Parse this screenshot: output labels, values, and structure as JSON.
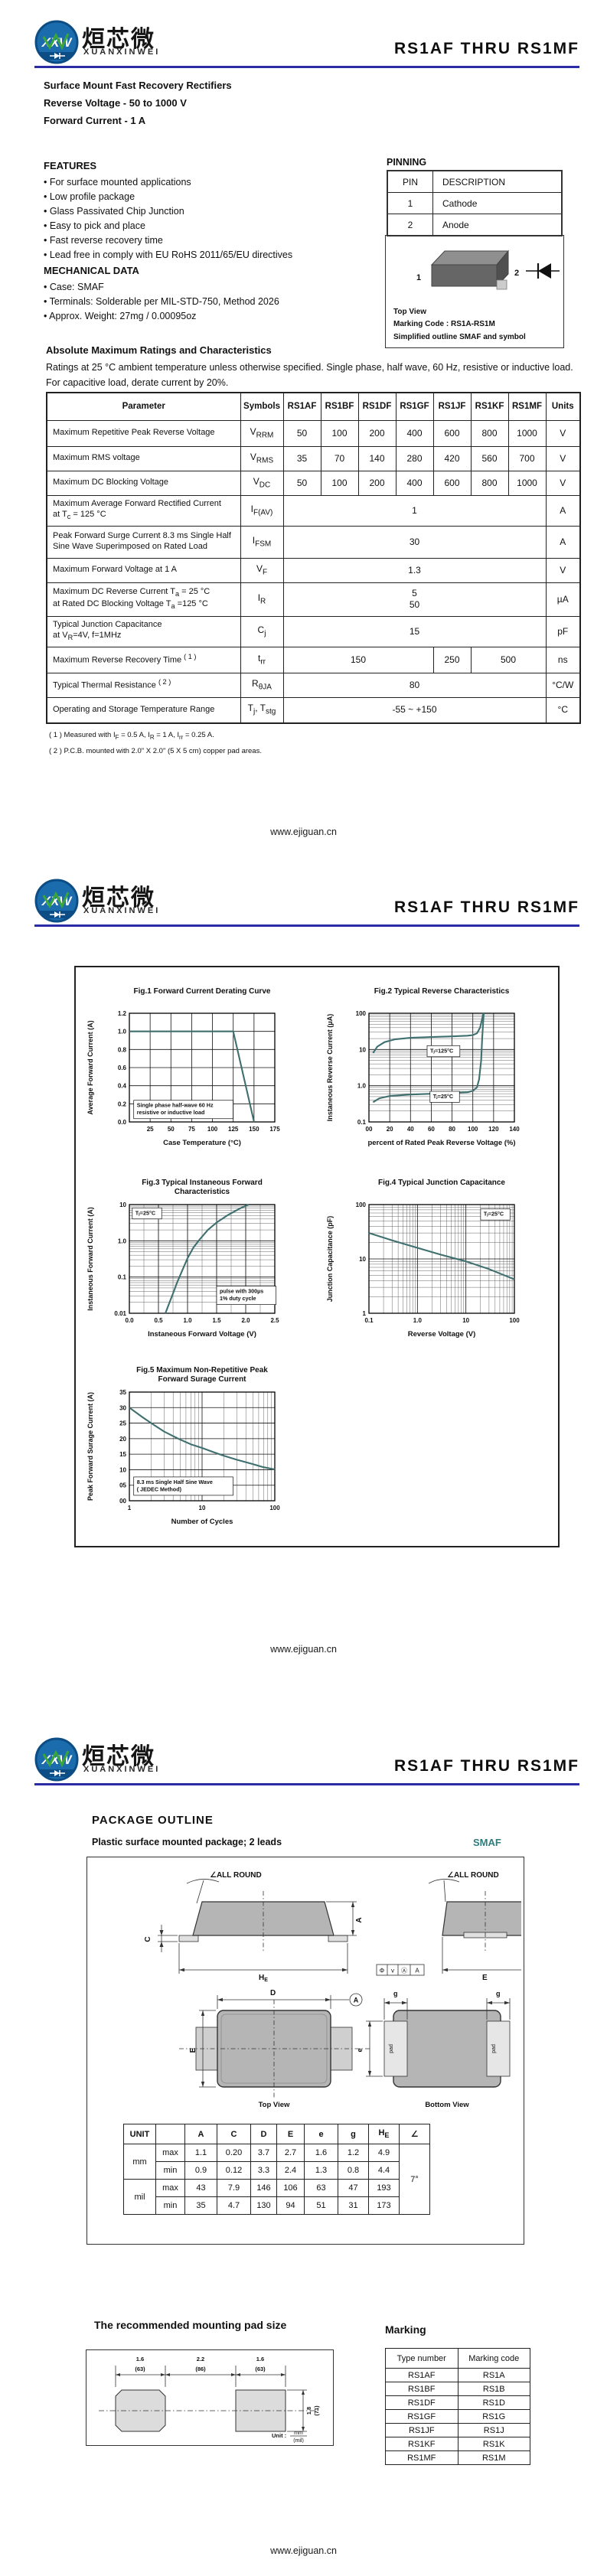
{
  "brand": {
    "title": "RS1AF  THRU  RS1MF",
    "logo_xxw": "XXW",
    "logo_cn": "烜芯微",
    "logo_en": "XUANXINWEI",
    "footer": "www.ejiguan.cn",
    "accent_color": "#2b2ba6",
    "teal_color": "#2e7d7d"
  },
  "page1": {
    "subtitle_lines": [
      "Surface Mount Fast Recovery Rectifiers",
      "Reverse Voltage - 50 to 1000 V",
      "Forward Current - 1 A"
    ],
    "features": {
      "heading": "FEATURES",
      "items": [
        "For surface mounted applications",
        "Low profile package",
        "Glass Passivated Chip Junction",
        "Easy to pick and place",
        "Fast reverse recovery time",
        "Lead free in comply with EU RoHS 2011/65/EU directives"
      ]
    },
    "mechanical": {
      "heading": "MECHANICAL DATA",
      "items": [
        "Case: SMAF",
        "Terminals: Solderable per MIL-STD-750, Method 2026",
        "Approx. Weight:  27mg / 0.00095oz"
      ]
    },
    "pinning": {
      "heading": "PINNING",
      "headers": [
        "PIN",
        "DESCRIPTION"
      ],
      "rows": [
        [
          "1",
          "Cathode"
        ],
        [
          "2",
          "Anode"
        ]
      ]
    },
    "outline_box": {
      "pin1": "1",
      "pin2": "2",
      "lines": [
        "Top View",
        "Marking Code :  RS1A-RS1M",
        "Simplified outline SMAF and symbol"
      ]
    },
    "ratings": {
      "heading": "Absolute Maximum Ratings and Characteristics",
      "note_lines": [
        "Ratings at 25 °C ambient temperature unless otherwise specified. Single phase, half wave, 60 Hz, resistive or inductive load.",
        "For capacitive load, derate current by 20%."
      ],
      "col_headers": [
        "Parameter",
        "Symbols",
        "RS1AF",
        "RS1BF",
        "RS1DF",
        "RS1GF",
        "RS1JF",
        "RS1KF",
        "RS1MF",
        "Units"
      ],
      "rows": [
        {
          "param": "Maximum Repetitive Peak Reverse Voltage",
          "sym": "V_{RRM}",
          "cells": [
            [
              "50",
              1
            ],
            [
              "100",
              1
            ],
            [
              "200",
              1
            ],
            [
              "400",
              1
            ],
            [
              "600",
              1
            ],
            [
              "800",
              1
            ],
            [
              "1000",
              1
            ]
          ],
          "unit": "V"
        },
        {
          "param": "Maximum RMS voltage",
          "sym": "V_{RMS}",
          "cells": [
            [
              "35",
              1
            ],
            [
              "70",
              1
            ],
            [
              "140",
              1
            ],
            [
              "280",
              1
            ],
            [
              "420",
              1
            ],
            [
              "560",
              1
            ],
            [
              "700",
              1
            ]
          ],
          "unit": "V"
        },
        {
          "param": "Maximum DC Blocking Voltage",
          "sym": "V_{DC}",
          "cells": [
            [
              "50",
              1
            ],
            [
              "100",
              1
            ],
            [
              "200",
              1
            ],
            [
              "400",
              1
            ],
            [
              "600",
              1
            ],
            [
              "800",
              1
            ],
            [
              "1000",
              1
            ]
          ],
          "unit": "V"
        },
        {
          "param": "Maximum Average Forward Rectified Current\nat T_{c} = 125 °C",
          "sym": "I_{F(AV)}",
          "cells": [
            [
              "1",
              7
            ]
          ],
          "unit": "A"
        },
        {
          "param": "Peak Forward Surge Current 8.3 ms Single Half\nSine Wave Superimposed on Rated Load",
          "sym": "I_{FSM}",
          "cells": [
            [
              "30",
              7
            ]
          ],
          "unit": "A"
        },
        {
          "param": "Maximum  Forward Voltage at 1 A",
          "sym": "V_{F}",
          "cells": [
            [
              "1.3",
              7
            ]
          ],
          "unit": "V"
        },
        {
          "param": "Maximum DC Reverse Current      T_{a} = 25 °C\nat Rated DC Blocking Voltage    T_{a} =125 °C",
          "sym": "I_{R}",
          "cells": [
            [
              "5\n50",
              7
            ]
          ],
          "unit": "µA"
        },
        {
          "param": "Typical Junction Capacitance\nat V_{R}=4V, f=1MHz",
          "sym": "C_{j}",
          "cells": [
            [
              "15",
              7
            ]
          ],
          "unit": "pF"
        },
        {
          "param": "Maximum Reverse Recovery Time ^{( 1 )}",
          "sym": "t_{rr}",
          "cells": [
            [
              "150",
              4
            ],
            [
              "250",
              1
            ],
            [
              "500",
              2
            ]
          ],
          "unit": "ns"
        },
        {
          "param": "Typical Thermal Resistance ^{( 2 )}",
          "sym": "R_{θJA}",
          "cells": [
            [
              "80",
              7
            ]
          ],
          "unit": "°C/W"
        },
        {
          "param": "Operating and Storage Temperature Range",
          "sym": "T_{j}, T_{stg}",
          "cells": [
            [
              "-55 ~ +150",
              7
            ]
          ],
          "unit": "°C"
        }
      ],
      "footnotes": [
        "( 1 ) Measured with I_{F} = 0.5 A, I_{R} = 1 A, I_{rr} = 0.25 A.",
        "( 2 ) P.C.B. mounted with 2.0\" X 2.0\" (5 X 5 cm) copper pad areas."
      ]
    }
  },
  "chart_data": [
    {
      "id": "fig1",
      "type": "line",
      "title": "Fig.1  Forward Current Derating Curve",
      "xlabel": "Case Temperature (°C)",
      "ylabel": "Average Forward Current  (A)",
      "x_scale": "linear",
      "y_scale": "linear",
      "xlim": [
        0,
        175
      ],
      "ylim": [
        0,
        1.2
      ],
      "x_ticks": [
        [
          25,
          "25"
        ],
        [
          50,
          "50"
        ],
        [
          75,
          "75"
        ],
        [
          100,
          "100"
        ],
        [
          125,
          "125"
        ],
        [
          150,
          "150"
        ],
        [
          175,
          "175"
        ]
      ],
      "y_ticks": [
        [
          0,
          "0.0"
        ],
        [
          0.2,
          "0.2"
        ],
        [
          0.4,
          "0.4"
        ],
        [
          0.6,
          "0.6"
        ],
        [
          0.8,
          "0.8"
        ],
        [
          1.0,
          "1.0"
        ],
        [
          1.2,
          "1.2"
        ]
      ],
      "series": [
        {
          "name": "derating",
          "points": [
            [
              0,
              1.0
            ],
            [
              125,
              1.0
            ],
            [
              150,
              0.0
            ]
          ]
        }
      ],
      "annotations": [
        {
          "text": "Single phase half-wave 60 Hz\nresistive or inductive load",
          "fx": 0.03,
          "fy": 0.97,
          "anchor": "bl",
          "boxed": true
        }
      ]
    },
    {
      "id": "fig2",
      "type": "line",
      "title": "Fig.2  Typical Reverse Characteristics",
      "xlabel": "percent of Rated  Peak Reverse Voltage (%)",
      "ylabel": "Instaneous Reverse Current  (μA)",
      "x_scale": "linear",
      "y_scale": "log",
      "xlim": [
        0,
        140
      ],
      "ylim": [
        0.1,
        100
      ],
      "x_ticks": [
        [
          0,
          "00"
        ],
        [
          20,
          "20"
        ],
        [
          40,
          "40"
        ],
        [
          60,
          "60"
        ],
        [
          80,
          "80"
        ],
        [
          100,
          "100"
        ],
        [
          120,
          "120"
        ],
        [
          140,
          "140"
        ]
      ],
      "y_ticks": [
        [
          0.1,
          "0.1"
        ],
        [
          1,
          "1.0"
        ],
        [
          10,
          "10"
        ],
        [
          100,
          "100"
        ]
      ],
      "series": [
        {
          "name": "Tj=125C",
          "points": [
            [
              4,
              8
            ],
            [
              8,
              12
            ],
            [
              15,
              16
            ],
            [
              25,
              19
            ],
            [
              40,
              21
            ],
            [
              60,
              22
            ],
            [
              80,
              23
            ],
            [
              95,
              24
            ],
            [
              100,
              25
            ],
            [
              104,
              28
            ],
            [
              107,
              40
            ],
            [
              109,
              70
            ],
            [
              110,
              100
            ]
          ]
        },
        {
          "name": "Tj=25C",
          "points": [
            [
              4,
              0.35
            ],
            [
              10,
              0.45
            ],
            [
              20,
              0.52
            ],
            [
              40,
              0.57
            ],
            [
              60,
              0.6
            ],
            [
              80,
              0.63
            ],
            [
              95,
              0.66
            ],
            [
              100,
              0.72
            ],
            [
              104,
              0.9
            ],
            [
              106,
              1.5
            ],
            [
              108,
              5
            ],
            [
              109,
              20
            ],
            [
              110,
              60
            ],
            [
              110.5,
              100
            ]
          ]
        }
      ],
      "annotations": [
        {
          "text": "Tⱼ=125°C",
          "fx": 0.4,
          "fy": 0.4,
          "anchor": "bl",
          "boxed": true
        },
        {
          "text": "Tⱼ=25°C",
          "fx": 0.42,
          "fy": 0.82,
          "anchor": "bl",
          "boxed": true
        }
      ]
    },
    {
      "id": "fig3",
      "type": "line",
      "title": "Fig.3  Typical Instaneous Forward\nCharacteristics",
      "xlabel": "Instaneous Forward Voltage (V)",
      "ylabel": "Instaneous Forward Current (A)",
      "x_scale": "linear",
      "y_scale": "log",
      "x_minor_step": 0.25,
      "xlim": [
        0,
        2.5
      ],
      "ylim": [
        0.01,
        10
      ],
      "x_ticks": [
        [
          0,
          "0.0"
        ],
        [
          0.5,
          "0.5"
        ],
        [
          1.0,
          "1.0"
        ],
        [
          1.5,
          "1.5"
        ],
        [
          2.0,
          "2.0"
        ],
        [
          2.5,
          "2.5"
        ]
      ],
      "y_ticks": [
        [
          0.01,
          "0.01"
        ],
        [
          0.1,
          "0.1"
        ],
        [
          1,
          "1.0"
        ],
        [
          10,
          "10"
        ]
      ],
      "series": [
        {
          "name": "vf",
          "points": [
            [
              0.62,
              0.01
            ],
            [
              0.68,
              0.018
            ],
            [
              0.75,
              0.035
            ],
            [
              0.82,
              0.07
            ],
            [
              0.9,
              0.14
            ],
            [
              1.0,
              0.33
            ],
            [
              1.1,
              0.65
            ],
            [
              1.2,
              1.05
            ],
            [
              1.35,
              2.0
            ],
            [
              1.5,
              3.2
            ],
            [
              1.7,
              5.2
            ],
            [
              1.9,
              7.8
            ],
            [
              2.05,
              10
            ]
          ]
        }
      ],
      "annotations": [
        {
          "text": "Tⱼ=25°C",
          "fx": 0.02,
          "fy": 0.03,
          "anchor": "tl",
          "boxed": true
        },
        {
          "text": "pulse with 300µs\n1% duty cycle",
          "fx": 0.6,
          "fy": 0.92,
          "anchor": "bl",
          "boxed": true
        }
      ]
    },
    {
      "id": "fig4",
      "type": "line",
      "title": "Fig.4  Typical Junction Capacitance",
      "xlabel": "Reverse  Voltage (V)",
      "ylabel": "Junction Capacitance (pF)",
      "x_scale": "log",
      "y_scale": "log",
      "xlim": [
        0.1,
        100
      ],
      "ylim": [
        1,
        100
      ],
      "x_ticks": [
        [
          0.1,
          "0.1"
        ],
        [
          1,
          "1.0"
        ],
        [
          10,
          "10"
        ],
        [
          100,
          "100"
        ]
      ],
      "y_ticks": [
        [
          1,
          "1"
        ],
        [
          10,
          "10"
        ],
        [
          100,
          "100"
        ]
      ],
      "series": [
        {
          "name": "cj",
          "points": [
            [
              0.1,
              30
            ],
            [
              0.3,
              22
            ],
            [
              1,
              16
            ],
            [
              3,
              12
            ],
            [
              10,
              9
            ],
            [
              30,
              6.5
            ],
            [
              100,
              4.2
            ]
          ]
        }
      ],
      "annotations": [
        {
          "text": "Tⱼ=25°C",
          "fx": 0.97,
          "fy": 0.04,
          "anchor": "tr",
          "boxed": true
        }
      ]
    },
    {
      "id": "fig5",
      "type": "line",
      "title": "Fig.5  Maximum Non-Repetitive Peak\nForward Surage Current",
      "xlabel": "Number of Cycles",
      "ylabel": "Peak Forward Surage Current (A)",
      "x_scale": "log",
      "y_scale": "linear",
      "xlim": [
        1,
        100
      ],
      "ylim": [
        0,
        35
      ],
      "x_ticks": [
        [
          1,
          "1"
        ],
        [
          10,
          "10"
        ],
        [
          100,
          "100"
        ]
      ],
      "y_ticks": [
        [
          0,
          "00"
        ],
        [
          5,
          "05"
        ],
        [
          10,
          "10"
        ],
        [
          15,
          "15"
        ],
        [
          20,
          "20"
        ],
        [
          25,
          "25"
        ],
        [
          30,
          "30"
        ],
        [
          35,
          "35"
        ]
      ],
      "series": [
        {
          "name": "ifsm",
          "points": [
            [
              1,
              30
            ],
            [
              1.5,
              27
            ],
            [
              2,
              25
            ],
            [
              3,
              22.3
            ],
            [
              4,
              20.8
            ],
            [
              5,
              19.7
            ],
            [
              7,
              18.2
            ],
            [
              10,
              17
            ],
            [
              15,
              15.5
            ],
            [
              20,
              14.5
            ],
            [
              30,
              13.2
            ],
            [
              50,
              11.8
            ],
            [
              70,
              10.8
            ],
            [
              100,
              10.1
            ]
          ]
        }
      ],
      "annotations": [
        {
          "text": "8.3 ms Single Half Sine Wave\n( JEDEC Method)",
          "fx": 0.03,
          "fy": 0.95,
          "anchor": "bl",
          "boxed": true
        }
      ]
    }
  ],
  "page3": {
    "heading": "PACKAGE  OUTLINE",
    "subheading": "Plastic surface mounted package; 2 leads",
    "package_name": "SMAF",
    "drawing": {
      "all_round": "∠ALL ROUND",
      "dim_a": "A",
      "dim_c": "C",
      "dim_d": "D",
      "dim_e_cap": "E",
      "dim_e_low": "e",
      "dim_g": "g",
      "dim_he_main": "H",
      "dim_he_sub": "E",
      "datum_cells": [
        "Φ",
        "v",
        "Ⓐ",
        "A"
      ],
      "datum_a": "A",
      "pad_label": "pad",
      "top_view": "Top View",
      "bottom_view": "Bottom View"
    },
    "dims_table": {
      "headers": [
        "UNIT",
        "",
        "A",
        "C",
        "D",
        "E",
        "e",
        "g",
        "H_{E}",
        "∠"
      ],
      "groups": [
        {
          "unit": "mm",
          "max": [
            "1.1",
            "0.20",
            "3.7",
            "2.7",
            "1.6",
            "1.2",
            "4.9"
          ],
          "min": [
            "0.9",
            "0.12",
            "3.3",
            "2.4",
            "1.3",
            "0.8",
            "4.4"
          ]
        },
        {
          "unit": "mil",
          "max": [
            "43",
            "7.9",
            "146",
            "106",
            "63",
            "47",
            "193"
          ],
          "min": [
            "35",
            "4.7",
            "130",
            "94",
            "51",
            "31",
            "173"
          ]
        }
      ],
      "row_labels": [
        "max",
        "min"
      ],
      "angle": "7°"
    },
    "pad_section": {
      "heading": "The recommended mounting pad size",
      "top_dims": [
        [
          "1.6",
          "(63)"
        ],
        [
          "2.2",
          "(86)"
        ],
        [
          "1.6",
          "(63)"
        ]
      ],
      "side_dim": [
        "1.8",
        "(71)"
      ],
      "unit_label": "Unit :",
      "unit_top": "mm",
      "unit_bottom": "(mil)"
    },
    "marking": {
      "heading": "Marking",
      "headers": [
        "Type number",
        "Marking code"
      ],
      "rows": [
        [
          "RS1AF",
          "RS1A"
        ],
        [
          "RS1BF",
          "RS1B"
        ],
        [
          "RS1DF",
          "RS1D"
        ],
        [
          "RS1GF",
          "RS1G"
        ],
        [
          "RS1JF",
          "RS1J"
        ],
        [
          "RS1KF",
          "RS1K"
        ],
        [
          "RS1MF",
          "RS1M"
        ]
      ]
    }
  }
}
